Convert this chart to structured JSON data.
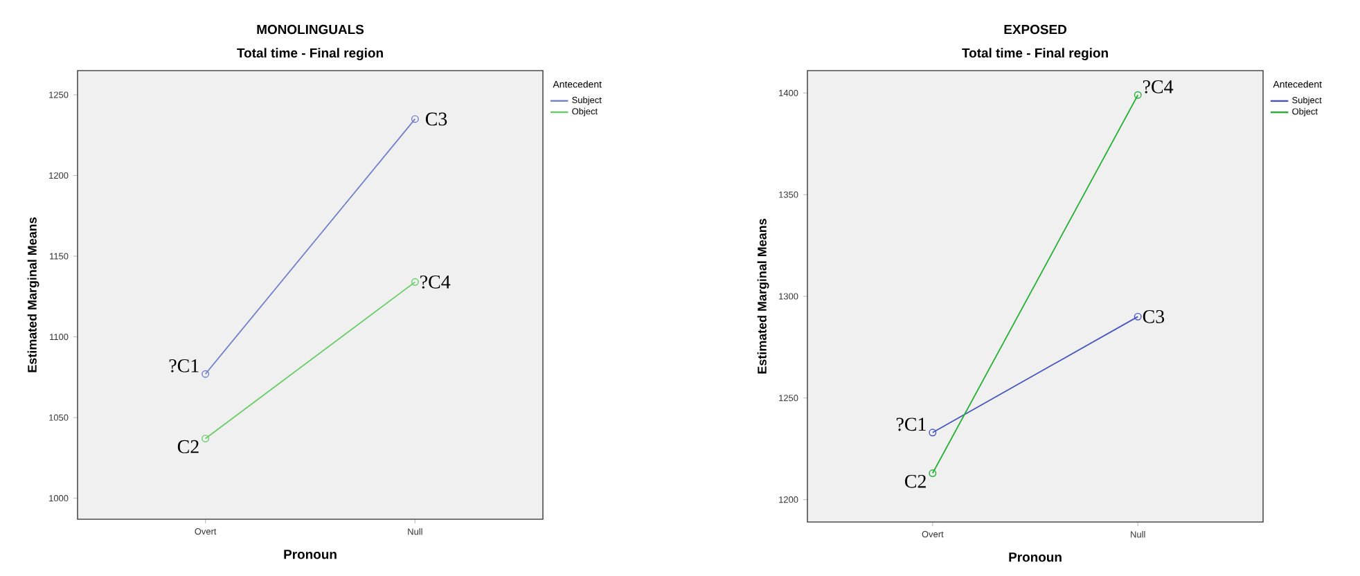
{
  "chart_data": [
    {
      "type": "line",
      "title": "MONOLINGUALS",
      "subtitle": "Total time - Final region",
      "xlabel": "Pronoun",
      "ylabel": "Estimated Marginal Means",
      "legend_title": "Antecedent",
      "legend": "top right",
      "marker": "circle",
      "categories": [
        "Overt",
        "Null"
      ],
      "ylim": [
        987,
        1265
      ],
      "yticks": [
        1000,
        1050,
        1100,
        1150,
        1200,
        1250
      ],
      "series": [
        {
          "name": "Subject",
          "color": "#6f7fc9",
          "values": [
            1077,
            1235
          ]
        },
        {
          "name": "Object",
          "color": "#66cc66",
          "values": [
            1037,
            1134
          ]
        }
      ],
      "annotations": [
        {
          "text": "?C1",
          "x": "Overt",
          "y": 1077
        },
        {
          "text": "C2",
          "x": "Overt",
          "y": 1037
        },
        {
          "text": "C3",
          "x": "Null",
          "y": 1235
        },
        {
          "text": "?C4",
          "x": "Null",
          "y": 1134
        }
      ]
    },
    {
      "type": "line",
      "title": "EXPOSED",
      "subtitle": "Total time - Final region",
      "xlabel": "Pronoun",
      "ylabel": "Estimated Marginal Means",
      "legend_title": "Antecedent",
      "legend": "top right",
      "marker": "circle",
      "categories": [
        "Overt",
        "Null"
      ],
      "ylim": [
        1189,
        1411
      ],
      "yticks": [
        1200,
        1250,
        1300,
        1350,
        1400
      ],
      "series": [
        {
          "name": "Subject",
          "color": "#4455c0",
          "values": [
            1233,
            1290
          ]
        },
        {
          "name": "Object",
          "color": "#22b033",
          "values": [
            1213,
            1399
          ]
        }
      ],
      "annotations": [
        {
          "text": "?C1",
          "x": "Overt",
          "y": 1233
        },
        {
          "text": "C2",
          "x": "Overt",
          "y": 1213
        },
        {
          "text": "C3",
          "x": "Null",
          "y": 1290
        },
        {
          "text": "?C4",
          "x": "Null",
          "y": 1399
        }
      ]
    }
  ]
}
